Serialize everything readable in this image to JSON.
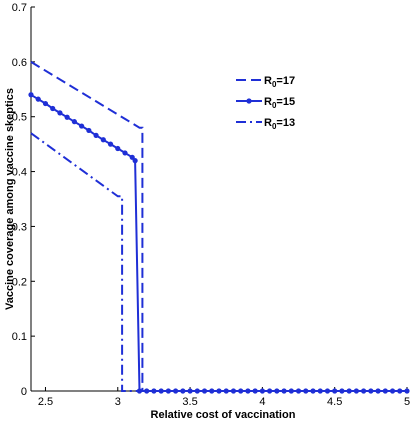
{
  "chart_data": {
    "type": "line",
    "xlabel": "Relative cost of vaccination",
    "ylabel": "Vaccine coverage among vaccine skeptics",
    "xlim": [
      2.4,
      5
    ],
    "ylim": [
      0,
      0.7
    ],
    "x_ticks": [
      2.5,
      3,
      3.5,
      4,
      4.5,
      5
    ],
    "x_tick_labels": [
      "2.5",
      "3",
      "3.5",
      "4",
      "4.5",
      "5"
    ],
    "y_ticks": [
      0,
      0.1,
      0.2,
      0.3,
      0.4,
      0.5,
      0.6,
      0.7
    ],
    "y_tick_labels": [
      "0",
      "0.1",
      "0.2",
      "0.3",
      "0.4",
      "0.5",
      "0.6",
      "0.7"
    ],
    "grid": false,
    "legend_position": "top-right",
    "color": "#1f2fd6",
    "series": [
      {
        "name_main": "R",
        "name_sub": "0",
        "name_rest": "=17",
        "style": "dashed",
        "markers": false,
        "x": [
          2.4,
          3.15,
          3.15,
          3.17,
          3.17,
          5
        ],
        "y": [
          0.6,
          0.48,
          0.48,
          0.48,
          0,
          0
        ]
      },
      {
        "name_main": "R",
        "name_sub": "0",
        "name_rest": "=15",
        "style": "solid",
        "markers": true,
        "x": [
          2.4,
          2.45,
          2.5,
          2.55,
          2.6,
          2.65,
          2.7,
          2.75,
          2.8,
          2.85,
          2.9,
          2.95,
          3.0,
          3.05,
          3.1,
          3.12,
          3.15,
          3.2,
          3.25,
          3.3,
          3.35,
          3.4,
          3.45,
          3.5,
          3.55,
          3.6,
          3.65,
          3.7,
          3.75,
          3.8,
          3.85,
          3.9,
          3.95,
          4.0,
          4.05,
          4.1,
          4.15,
          4.2,
          4.25,
          4.3,
          4.35,
          4.4,
          4.45,
          4.5,
          4.55,
          4.6,
          4.65,
          4.7,
          4.75,
          4.8,
          4.85,
          4.9,
          4.95,
          5.0
        ],
        "y": [
          0.54,
          0.532,
          0.524,
          0.515,
          0.507,
          0.499,
          0.491,
          0.483,
          0.475,
          0.466,
          0.458,
          0.45,
          0.442,
          0.434,
          0.426,
          0.42,
          0,
          0,
          0,
          0,
          0,
          0,
          0,
          0,
          0,
          0,
          0,
          0,
          0,
          0,
          0,
          0,
          0,
          0,
          0,
          0,
          0,
          0,
          0,
          0,
          0,
          0,
          0,
          0,
          0,
          0,
          0,
          0,
          0,
          0,
          0,
          0,
          0,
          0
        ]
      },
      {
        "name_main": "R",
        "name_sub": "0",
        "name_rest": "=13",
        "style": "dashdot",
        "markers": false,
        "x": [
          2.4,
          3.0,
          3.0,
          3.03,
          3.03,
          5
        ],
        "y": [
          0.47,
          0.355,
          0.355,
          0.355,
          0,
          0
        ]
      }
    ]
  }
}
